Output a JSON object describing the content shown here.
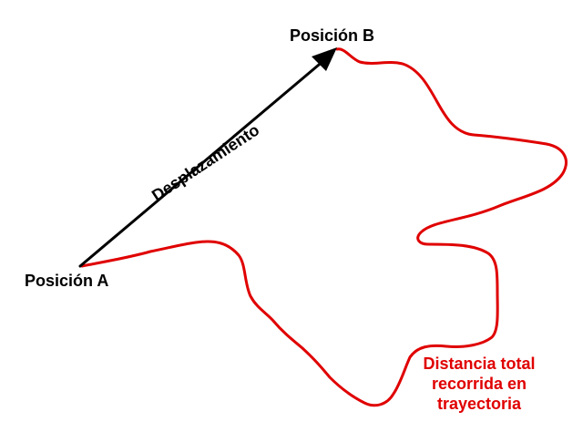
{
  "diagram": {
    "position_b": "Posición B",
    "position_a": "Posición A",
    "displacement": "Desplazamiento",
    "distance_lines": [
      "Distancia total",
      "recorrida en",
      "trayectoria"
    ]
  },
  "colors": {
    "arrow": "#000000",
    "path": "#e00000",
    "text": "#000000",
    "distance_text": "#e00000",
    "background": "#ffffff"
  }
}
